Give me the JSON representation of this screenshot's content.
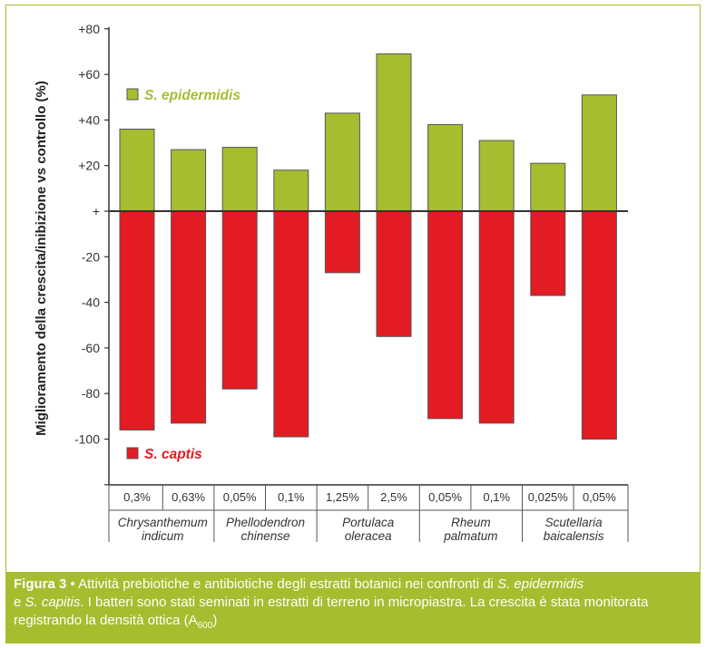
{
  "chart_data": {
    "type": "bar",
    "ylabel": "Miglioramento della crescita/inibizione vs controllo (%)",
    "ylim": [
      -120,
      80
    ],
    "yticks": [
      {
        "value": 80,
        "label": "+80"
      },
      {
        "value": 60,
        "label": "+60"
      },
      {
        "value": 40,
        "label": "+40"
      },
      {
        "value": 20,
        "label": "+20"
      },
      {
        "value": 0,
        "label": "+"
      },
      {
        "value": -20,
        "label": "-20"
      },
      {
        "value": -40,
        "label": "-40"
      },
      {
        "value": -60,
        "label": "-60"
      },
      {
        "value": -80,
        "label": "-80"
      },
      {
        "value": -100,
        "label": "-100"
      }
    ],
    "categories": [
      "0,3%",
      "0,63%",
      "0,05%",
      "0,1%",
      "1,25%",
      "2,5%",
      "0,05%",
      "0,1%",
      "0,025%",
      "0,05%"
    ],
    "groups": [
      {
        "line1": "Chrysanthemum",
        "line2": "indicum"
      },
      {
        "line1": "Phellodendron",
        "line2": "chinense"
      },
      {
        "line1": "Portulaca",
        "line2": "oleracea"
      },
      {
        "line1": "Rheum",
        "line2": "palmatum"
      },
      {
        "line1": "Scutellaria",
        "line2": "baicalensis"
      }
    ],
    "series": [
      {
        "name": "S. epidermidis",
        "color": "#a6bd2f",
        "values": [
          36,
          27,
          28,
          18,
          43,
          69,
          38,
          31,
          21,
          51
        ]
      },
      {
        "name": "S. captis",
        "color": "#e31b23",
        "values": [
          -96,
          -93,
          -78,
          -99,
          -27,
          -55,
          -91,
          -93,
          -37,
          -100
        ]
      }
    ]
  },
  "caption": {
    "figure_label": "Figura 3",
    "separator": " • ",
    "text1": "Attività prebiotiche e antibiotiche degli estratti botanici nei confronti di ",
    "species1": "S. epidermidis",
    "text2": "e ",
    "species2": "S. capitis",
    "text3": ". I batteri sono stati seminati in estratti di terreno in micropiastra. La crescita è stata monitorata registrando la densità ottica (A",
    "subscript": "600",
    "text4": ")"
  }
}
